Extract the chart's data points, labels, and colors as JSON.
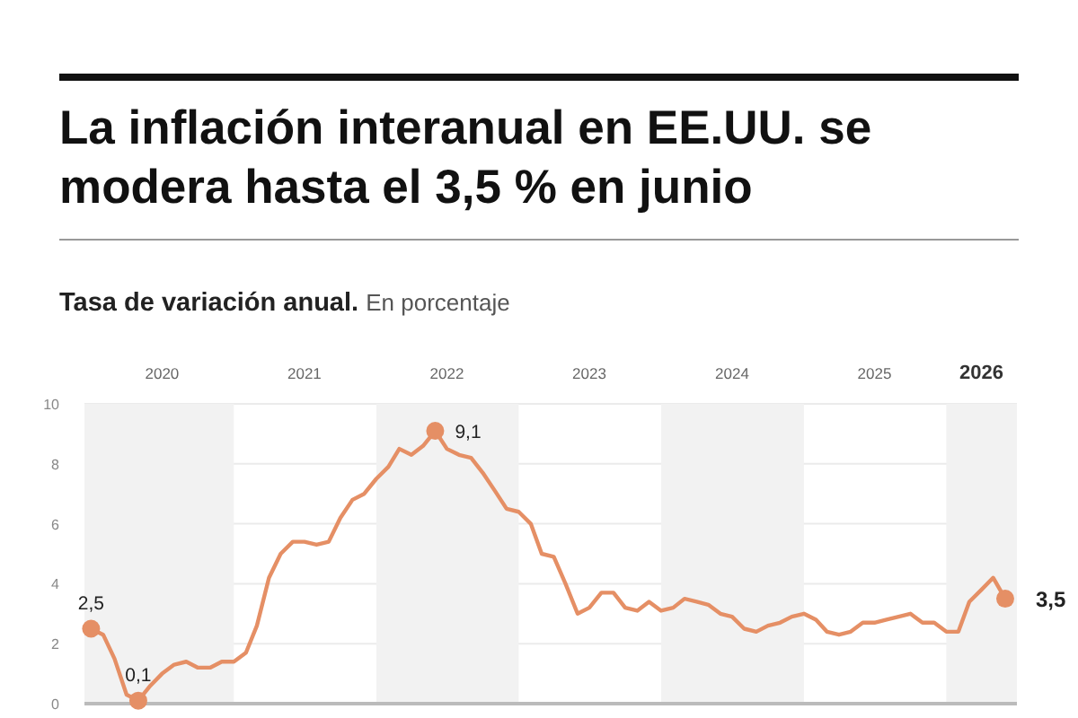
{
  "chart_data": {
    "type": "line",
    "title": "La inflación interanual en EE.UU. se modera hasta el 3,5 % en junio",
    "subtitle": "Tasa de variación anual.",
    "ylabel": "En porcentaje",
    "x": [
      "2020-01",
      "2020-02",
      "2020-03",
      "2020-04",
      "2020-05",
      "2020-06",
      "2020-07",
      "2020-08",
      "2020-09",
      "2020-10",
      "2020-11",
      "2020-12",
      "2021-01",
      "2021-02",
      "2021-03",
      "2021-04",
      "2021-05",
      "2021-06",
      "2021-07",
      "2021-08",
      "2021-09",
      "2021-10",
      "2021-11",
      "2021-12",
      "2022-01",
      "2022-02",
      "2022-03",
      "2022-04",
      "2022-05",
      "2022-06",
      "2022-07",
      "2022-08",
      "2022-09",
      "2022-10",
      "2022-11",
      "2022-12",
      "2023-01",
      "2023-02",
      "2023-03",
      "2023-04",
      "2023-05",
      "2023-06",
      "2023-07",
      "2023-08",
      "2023-09",
      "2023-10",
      "2023-11",
      "2023-12",
      "2024-01",
      "2024-02",
      "2024-03",
      "2024-04",
      "2024-05",
      "2024-06",
      "2024-07",
      "2024-08",
      "2024-09",
      "2024-10",
      "2024-11",
      "2024-12",
      "2025-01",
      "2025-02",
      "2025-03",
      "2025-04",
      "2025-05",
      "2025-06",
      "2025-07",
      "2025-08",
      "2025-09",
      "2025-10",
      "2025-11",
      "2025-12",
      "2026-01",
      "2026-02",
      "2026-03",
      "2026-04",
      "2026-05",
      "2026-06"
    ],
    "series": [
      {
        "color": "#e58f65",
        "values": [
          2.5,
          2.3,
          1.5,
          0.3,
          0.1,
          0.6,
          1.0,
          1.3,
          1.4,
          1.2,
          1.2,
          1.4,
          1.4,
          1.7,
          2.6,
          4.2,
          5.0,
          5.4,
          5.4,
          5.3,
          5.4,
          6.2,
          6.8,
          7.0,
          7.5,
          7.9,
          8.5,
          8.3,
          8.6,
          9.1,
          8.5,
          8.3,
          8.2,
          7.7,
          7.1,
          6.5,
          6.4,
          6.0,
          5.0,
          4.9,
          4.0,
          3.0,
          3.2,
          3.7,
          3.7,
          3.2,
          3.1,
          3.4,
          3.1,
          3.2,
          3.5,
          3.4,
          3.3,
          3.0,
          2.9,
          2.5,
          2.4,
          2.6,
          2.7,
          2.9,
          3.0,
          2.8,
          2.4,
          2.3,
          2.4,
          2.7,
          2.7,
          2.8,
          2.9,
          3.0,
          2.7,
          2.7,
          2.4,
          2.4,
          3.4,
          3.8,
          4.2,
          3.5
        ]
      }
    ],
    "xlim": [
      "2019-12-15",
      "2026-07-01"
    ],
    "xticks": [
      {
        "value": "2020-07",
        "label": "2020"
      },
      {
        "value": "2021-07",
        "label": "2021"
      },
      {
        "value": "2022-07",
        "label": "2022"
      },
      {
        "value": "2023-07",
        "label": "2023"
      },
      {
        "value": "2024-07",
        "label": "2024"
      },
      {
        "value": "2025-07",
        "label": "2025"
      },
      {
        "value": "2026-04",
        "label": "2026"
      }
    ],
    "ylim": [
      0,
      10
    ],
    "yticks": [
      0,
      2,
      4,
      6,
      8,
      10
    ],
    "grid": "y",
    "marker": "none",
    "line_style": "solid",
    "bands": [
      {
        "axis": "x",
        "from": "2019-12-15",
        "to": "2021-01",
        "label": null,
        "color": "#f2f2f2"
      },
      {
        "axis": "x",
        "from": "2022-01",
        "to": "2023-01",
        "label": null,
        "color": "#f2f2f2"
      },
      {
        "axis": "x",
        "from": "2024-01",
        "to": "2025-01",
        "label": null,
        "color": "#f2f2f2"
      },
      {
        "axis": "x",
        "from": "2026-01",
        "to": "2026-07-01",
        "label": null,
        "color": "#f2f2f2"
      }
    ],
    "annotations": [
      {
        "text": "2,5",
        "x": "2020-01",
        "y": 2.5
      },
      {
        "text": "0,1",
        "x": "2020-05",
        "y": 0.1
      },
      {
        "text": "9,1",
        "x": "2022-06",
        "y": 9.1
      },
      {
        "text": "3,5",
        "x": "2026-06",
        "y": 3.5
      }
    ]
  }
}
